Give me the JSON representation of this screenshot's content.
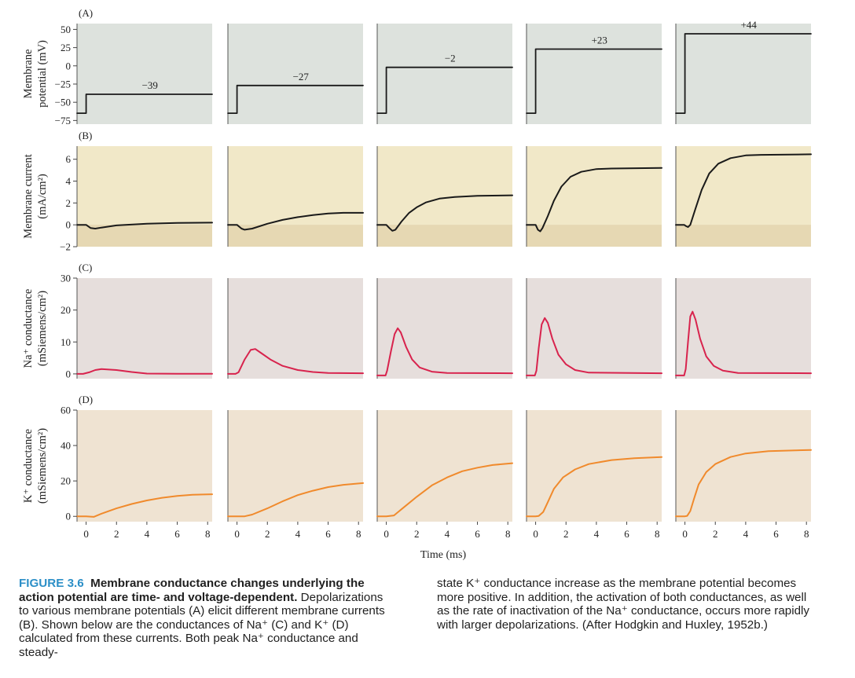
{
  "figure": {
    "rows": [
      {
        "label": "(A)",
        "ylabel_lines": [
          "Membrane",
          "potential (mV)"
        ],
        "ticks": [
          "50",
          "25",
          "0",
          "−25",
          "−50",
          "−75"
        ],
        "tick_values": [
          50,
          25,
          0,
          -25,
          -50,
          -75
        ],
        "ymin": -80,
        "ymax": 58,
        "bg": "#dde2dd",
        "line_color": "#1a1a1a"
      },
      {
        "label": "(B)",
        "ylabel_lines": [
          "Membrane current",
          "(mA/cm²)"
        ],
        "ticks": [
          "6",
          "4",
          "2",
          "0",
          "−2"
        ],
        "tick_values": [
          6,
          4,
          2,
          0,
          -2
        ],
        "ymin": -2,
        "ymax": 7.2,
        "bg": "#f1e8c8",
        "bg_lower": "#e6d8b3",
        "line_color": "#1a1a1a"
      },
      {
        "label": "(C)",
        "ylabel_lines": [
          "Na⁺ conductance",
          "(mSiemens/cm²)"
        ],
        "ticks": [
          "30",
          "20",
          "10",
          "0"
        ],
        "tick_values": [
          30,
          20,
          10,
          0
        ],
        "ymin": -1.5,
        "ymax": 30,
        "bg": "#e6dedc",
        "line_color": "#d8234d"
      },
      {
        "label": "(D)",
        "ylabel_lines": [
          "K⁺ conductance",
          "(mSiemens/cm²)"
        ],
        "ticks": [
          "60",
          "40",
          "20",
          "0"
        ],
        "tick_values": [
          60,
          40,
          20,
          0
        ],
        "ymin": -3,
        "ymax": 60,
        "bg": "#efe3d2",
        "line_color": "#f08a2c"
      }
    ],
    "x_ticks": [
      "0",
      "2",
      "4",
      "6",
      "8"
    ],
    "x_tick_values": [
      0,
      2,
      4,
      6,
      8
    ],
    "x_label": "Time (ms)"
  },
  "chart_data": {
    "type": "line",
    "x_range": [
      -0.6,
      8.3
    ],
    "xlabel": "Time (ms)",
    "step_time_ms": 0,
    "holding_potential_mV": -65,
    "columns": [
      {
        "step_label": "−39",
        "step_mV": -39,
        "current": [
          [
            -0.6,
            0
          ],
          [
            -0.2,
            0
          ],
          [
            0,
            0
          ],
          [
            0.3,
            -0.3
          ],
          [
            0.6,
            -0.35
          ],
          [
            1,
            -0.25
          ],
          [
            2,
            -0.05
          ],
          [
            4,
            0.1
          ],
          [
            6,
            0.18
          ],
          [
            8.3,
            0.2
          ]
        ],
        "na_conductance": [
          [
            -0.6,
            0
          ],
          [
            -0.2,
            0
          ],
          [
            0.2,
            0.5
          ],
          [
            0.6,
            1.2
          ],
          [
            1,
            1.5
          ],
          [
            2,
            1.2
          ],
          [
            3,
            0.6
          ],
          [
            4,
            0.1
          ],
          [
            6,
            0.05
          ],
          [
            8.3,
            0.05
          ]
        ],
        "k_conductance": [
          [
            -0.6,
            0
          ],
          [
            0,
            0
          ],
          [
            0.5,
            -0.3
          ],
          [
            1,
            1.5
          ],
          [
            2,
            4.5
          ],
          [
            3,
            7
          ],
          [
            4,
            9
          ],
          [
            5,
            10.5
          ],
          [
            6,
            11.5
          ],
          [
            7,
            12.2
          ],
          [
            8.3,
            12.5
          ]
        ]
      },
      {
        "step_label": "−27",
        "step_mV": -27,
        "current": [
          [
            -0.6,
            0
          ],
          [
            -0.2,
            0
          ],
          [
            0,
            0
          ],
          [
            0.3,
            -0.35
          ],
          [
            0.5,
            -0.45
          ],
          [
            1,
            -0.35
          ],
          [
            2,
            0.1
          ],
          [
            3,
            0.45
          ],
          [
            4,
            0.7
          ],
          [
            5,
            0.9
          ],
          [
            6,
            1.03
          ],
          [
            7,
            1.1
          ],
          [
            8.3,
            1.1
          ]
        ],
        "na_conductance": [
          [
            -0.6,
            0
          ],
          [
            -0.1,
            0
          ],
          [
            0.1,
            0.5
          ],
          [
            0.5,
            4.5
          ],
          [
            0.9,
            7.5
          ],
          [
            1.2,
            7.8
          ],
          [
            1.6,
            6.5
          ],
          [
            2.2,
            4.5
          ],
          [
            3,
            2.5
          ],
          [
            4,
            1.2
          ],
          [
            5,
            0.6
          ],
          [
            6,
            0.3
          ],
          [
            8.3,
            0.2
          ]
        ],
        "k_conductance": [
          [
            -0.6,
            0
          ],
          [
            0,
            0
          ],
          [
            0.5,
            0
          ],
          [
            1,
            1
          ],
          [
            2,
            4.5
          ],
          [
            3,
            8.5
          ],
          [
            4,
            12
          ],
          [
            5,
            14.5
          ],
          [
            6,
            16.5
          ],
          [
            7,
            17.8
          ],
          [
            8.3,
            18.8
          ]
        ]
      },
      {
        "step_label": "−2",
        "step_mV": -2,
        "current": [
          [
            -0.6,
            0
          ],
          [
            -0.1,
            0
          ],
          [
            0,
            0
          ],
          [
            0.2,
            -0.3
          ],
          [
            0.4,
            -0.55
          ],
          [
            0.6,
            -0.45
          ],
          [
            1,
            0.3
          ],
          [
            1.5,
            1.1
          ],
          [
            2,
            1.6
          ],
          [
            2.6,
            2.05
          ],
          [
            3.5,
            2.4
          ],
          [
            4.5,
            2.55
          ],
          [
            6,
            2.65
          ],
          [
            8.3,
            2.7
          ]
        ],
        "na_conductance": [
          [
            -0.6,
            -0.5
          ],
          [
            -0.05,
            -0.5
          ],
          [
            0.05,
            1
          ],
          [
            0.3,
            7
          ],
          [
            0.55,
            12.5
          ],
          [
            0.75,
            14.3
          ],
          [
            0.95,
            13
          ],
          [
            1.3,
            8.5
          ],
          [
            1.7,
            4.5
          ],
          [
            2.2,
            2
          ],
          [
            3,
            0.7
          ],
          [
            4,
            0.3
          ],
          [
            8.3,
            0.2
          ]
        ],
        "k_conductance": [
          [
            -0.6,
            0
          ],
          [
            0,
            0
          ],
          [
            0.5,
            0.5
          ],
          [
            1,
            4
          ],
          [
            2,
            11
          ],
          [
            3,
            17.5
          ],
          [
            4,
            22
          ],
          [
            5,
            25.5
          ],
          [
            6,
            27.5
          ],
          [
            7,
            29
          ],
          [
            8.3,
            30
          ]
        ]
      },
      {
        "step_label": "+23",
        "step_mV": 23,
        "current": [
          [
            -0.6,
            0
          ],
          [
            -0.1,
            0
          ],
          [
            0,
            0
          ],
          [
            0.15,
            -0.45
          ],
          [
            0.3,
            -0.6
          ],
          [
            0.45,
            -0.3
          ],
          [
            0.8,
            0.8
          ],
          [
            1.2,
            2.2
          ],
          [
            1.7,
            3.5
          ],
          [
            2.3,
            4.4
          ],
          [
            3,
            4.85
          ],
          [
            4,
            5.1
          ],
          [
            5,
            5.15
          ],
          [
            8.3,
            5.2
          ]
        ],
        "na_conductance": [
          [
            -0.6,
            -0.5
          ],
          [
            -0.05,
            -0.5
          ],
          [
            0.05,
            1
          ],
          [
            0.2,
            8
          ],
          [
            0.4,
            15.5
          ],
          [
            0.6,
            17.5
          ],
          [
            0.8,
            16
          ],
          [
            1.1,
            11
          ],
          [
            1.5,
            6
          ],
          [
            2,
            3
          ],
          [
            2.6,
            1.2
          ],
          [
            3.5,
            0.4
          ],
          [
            8.3,
            0.2
          ]
        ],
        "k_conductance": [
          [
            -0.6,
            0
          ],
          [
            0,
            0
          ],
          [
            0.2,
            0.2
          ],
          [
            0.5,
            2.5
          ],
          [
            0.8,
            8
          ],
          [
            1.2,
            15.5
          ],
          [
            1.8,
            22
          ],
          [
            2.6,
            26.5
          ],
          [
            3.5,
            29.5
          ],
          [
            5,
            31.8
          ],
          [
            6.5,
            32.8
          ],
          [
            8.3,
            33.5
          ]
        ]
      },
      {
        "step_label": "+44",
        "step_mV": 44,
        "current": [
          [
            -0.6,
            0
          ],
          [
            -0.05,
            0
          ],
          [
            0.05,
            -0.1
          ],
          [
            0.2,
            -0.2
          ],
          [
            0.35,
            0
          ],
          [
            0.7,
            1.5
          ],
          [
            1.1,
            3.2
          ],
          [
            1.6,
            4.7
          ],
          [
            2.2,
            5.6
          ],
          [
            3,
            6.1
          ],
          [
            4,
            6.35
          ],
          [
            5,
            6.4
          ],
          [
            8.3,
            6.45
          ]
        ],
        "na_conductance": [
          [
            -0.6,
            -0.5
          ],
          [
            -0.05,
            -0.5
          ],
          [
            0.05,
            1.5
          ],
          [
            0.2,
            10
          ],
          [
            0.35,
            18
          ],
          [
            0.5,
            19.5
          ],
          [
            0.7,
            17
          ],
          [
            1,
            11
          ],
          [
            1.4,
            5.5
          ],
          [
            1.9,
            2.5
          ],
          [
            2.5,
            1
          ],
          [
            3.5,
            0.3
          ],
          [
            8.3,
            0.2
          ]
        ],
        "k_conductance": [
          [
            -0.6,
            0
          ],
          [
            0,
            0
          ],
          [
            0.15,
            0.3
          ],
          [
            0.35,
            3
          ],
          [
            0.6,
            10
          ],
          [
            0.9,
            18
          ],
          [
            1.4,
            25
          ],
          [
            2,
            29.5
          ],
          [
            3,
            33.5
          ],
          [
            4,
            35.5
          ],
          [
            5.5,
            36.8
          ],
          [
            8.3,
            37.5
          ]
        ]
      }
    ]
  },
  "caption": {
    "figure_number": "FIGURE 3.6",
    "title": "Membrane conductance changes underlying the action potential are time- and voltage-dependent.",
    "body_left": "Depolarizations to various membrane potentials (A) elicit different membrane currents (B). Shown below are the conductances of Na⁺ (C) and K⁺ (D) calculated from these currents. Both peak Na⁺ conductance and steady-",
    "body_right": "state K⁺ conductance increase as the membrane potential becomes more positive. In addition, the activation of both conductances, as well as the rate of inactivation of the Na⁺ conductance, occurs more rapidly with larger depolarizations. (After Hodgkin and Huxley, 1952b.)"
  }
}
